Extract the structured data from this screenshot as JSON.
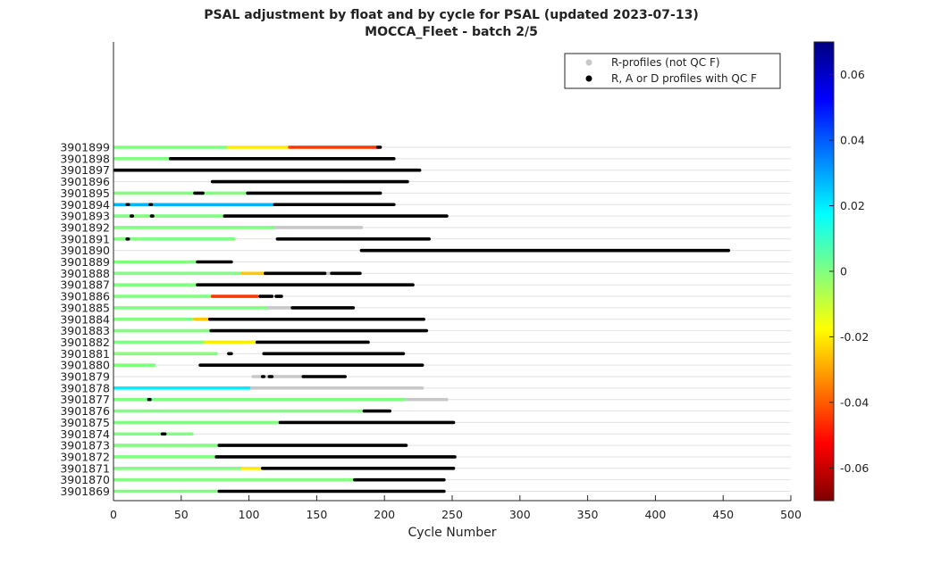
{
  "chart_data": {
    "type": "timeline",
    "title": "PSAL adjustment by float and by cycle for PSAL (updated 2023-07-13)",
    "subtitle": "MOCCA_Fleet - batch 2/5",
    "xlabel": "Cycle Number",
    "xlim": [
      0,
      500
    ],
    "xticks": [
      "0",
      "50",
      "100",
      "150",
      "200",
      "250",
      "300",
      "350",
      "400",
      "450",
      "500"
    ],
    "legend": {
      "placement": "top-right",
      "entries": [
        {
          "label": "R-profiles (not QC F)",
          "color": "#c8c8c8"
        },
        {
          "label": "R, A or D profiles with QC F",
          "color": "#000000"
        }
      ]
    },
    "colorbar": {
      "range": [
        -0.07,
        0.07
      ],
      "ticks": [
        "0.06",
        "0.04",
        "0.02",
        "0",
        "-0.02",
        "-0.04",
        "-0.06"
      ],
      "colormap": "jet"
    },
    "floats": [
      {
        "id": "3901899",
        "segments": [
          {
            "from": 1,
            "to": 85,
            "adj": 0.0
          },
          {
            "from": 85,
            "to": 130,
            "adj": -0.02
          },
          {
            "from": 130,
            "to": 195,
            "adj": -0.045
          },
          {
            "from": 195,
            "to": 197,
            "qcf": true
          }
        ]
      },
      {
        "id": "3901898",
        "segments": [
          {
            "from": 1,
            "to": 42,
            "adj": 0.0
          },
          {
            "from": 42,
            "to": 207,
            "qcf": true
          }
        ]
      },
      {
        "id": "3901897",
        "segments": [
          {
            "from": 1,
            "to": 226,
            "qcf": true
          }
        ]
      },
      {
        "id": "3901896",
        "segments": [
          {
            "from": 73,
            "to": 217,
            "qcf": true
          }
        ]
      },
      {
        "id": "3901895",
        "segments": [
          {
            "from": 1,
            "to": 60,
            "adj": 0.0
          },
          {
            "from": 60,
            "to": 66,
            "qcf": true
          },
          {
            "from": 66,
            "to": 99,
            "adj": 0.0
          },
          {
            "from": 99,
            "to": 197,
            "qcf": true
          }
        ]
      },
      {
        "id": "3901894",
        "segments": [
          {
            "from": 1,
            "to": 119,
            "adj": 0.028
          },
          {
            "from": 10,
            "to": 11,
            "qcf": true
          },
          {
            "from": 27,
            "to": 28,
            "qcf": true
          },
          {
            "from": 119,
            "to": 207,
            "qcf": true
          }
        ]
      },
      {
        "id": "3901893",
        "segments": [
          {
            "from": 1,
            "to": 82,
            "adj": 0.0
          },
          {
            "from": 13,
            "to": 14,
            "qcf": true
          },
          {
            "from": 28,
            "to": 29,
            "qcf": true
          },
          {
            "from": 82,
            "to": 246,
            "qcf": true
          }
        ]
      },
      {
        "id": "3901892",
        "segments": [
          {
            "from": 1,
            "to": 118,
            "adj": 0.0
          },
          {
            "from": 118,
            "to": 183,
            "r": true
          }
        ]
      },
      {
        "id": "3901891",
        "segments": [
          {
            "from": 1,
            "to": 89,
            "adj": 0.0
          },
          {
            "from": 10,
            "to": 11,
            "qcf": true
          },
          {
            "from": 121,
            "to": 233,
            "qcf": true
          }
        ]
      },
      {
        "id": "3901890",
        "segments": [
          {
            "from": 183,
            "to": 454,
            "qcf": true
          }
        ]
      },
      {
        "id": "3901889",
        "segments": [
          {
            "from": 1,
            "to": 62,
            "adj": 0.0
          },
          {
            "from": 62,
            "to": 87,
            "qcf": true
          }
        ]
      },
      {
        "id": "3901888",
        "segments": [
          {
            "from": 1,
            "to": 95,
            "adj": 0.0
          },
          {
            "from": 95,
            "to": 112,
            "adj": -0.025
          },
          {
            "from": 112,
            "to": 156,
            "qcf": true
          },
          {
            "from": 156,
            "to": 161,
            "r": true
          },
          {
            "from": 161,
            "to": 182,
            "qcf": true
          }
        ]
      },
      {
        "id": "3901887",
        "segments": [
          {
            "from": 1,
            "to": 62,
            "adj": 0.0
          },
          {
            "from": 62,
            "to": 221,
            "qcf": true
          }
        ]
      },
      {
        "id": "3901886",
        "segments": [
          {
            "from": 1,
            "to": 73,
            "adj": 0.0
          },
          {
            "from": 73,
            "to": 106,
            "adj": -0.045
          },
          {
            "from": 108,
            "to": 117,
            "qcf": true
          },
          {
            "from": 120,
            "to": 124,
            "qcf": true
          }
        ]
      },
      {
        "id": "3901885",
        "segments": [
          {
            "from": 1,
            "to": 113,
            "adj": 0.0
          },
          {
            "from": 113,
            "to": 132,
            "r": true
          },
          {
            "from": 132,
            "to": 177,
            "qcf": true
          }
        ]
      },
      {
        "id": "3901884",
        "segments": [
          {
            "from": 1,
            "to": 60,
            "adj": 0.0
          },
          {
            "from": 60,
            "to": 71,
            "adj": -0.025
          },
          {
            "from": 71,
            "to": 229,
            "qcf": true
          }
        ]
      },
      {
        "id": "3901883",
        "segments": [
          {
            "from": 1,
            "to": 72,
            "adj": 0.0
          },
          {
            "from": 72,
            "to": 231,
            "qcf": true
          }
        ]
      },
      {
        "id": "3901882",
        "segments": [
          {
            "from": 1,
            "to": 68,
            "adj": 0.0
          },
          {
            "from": 68,
            "to": 106,
            "adj": -0.02
          },
          {
            "from": 106,
            "to": 188,
            "qcf": true
          }
        ]
      },
      {
        "id": "3901881",
        "segments": [
          {
            "from": 1,
            "to": 76,
            "adj": 0.0
          },
          {
            "from": 85,
            "to": 87,
            "qcf": true
          },
          {
            "from": 111,
            "to": 214,
            "qcf": true
          }
        ]
      },
      {
        "id": "3901880",
        "segments": [
          {
            "from": 1,
            "to": 30,
            "adj": 0.0
          },
          {
            "from": 64,
            "to": 228,
            "qcf": true
          }
        ]
      },
      {
        "id": "3901879",
        "segments": [
          {
            "from": 103,
            "to": 140,
            "r": true
          },
          {
            "from": 110,
            "to": 111,
            "qcf": true
          },
          {
            "from": 115,
            "to": 117,
            "qcf": true
          },
          {
            "from": 140,
            "to": 171,
            "qcf": true
          }
        ]
      },
      {
        "id": "3901878",
        "segments": [
          {
            "from": 1,
            "to": 100,
            "adj": 0.02
          },
          {
            "from": 100,
            "to": 228,
            "r": true
          }
        ]
      },
      {
        "id": "3901877",
        "segments": [
          {
            "from": 1,
            "to": 215,
            "adj": 0.0
          },
          {
            "from": 26,
            "to": 27,
            "qcf": true
          },
          {
            "from": 215,
            "to": 246,
            "r": true
          }
        ]
      },
      {
        "id": "3901876",
        "segments": [
          {
            "from": 1,
            "to": 185,
            "adj": 0.0
          },
          {
            "from": 185,
            "to": 204,
            "qcf": true
          }
        ]
      },
      {
        "id": "3901875",
        "segments": [
          {
            "from": 1,
            "to": 123,
            "adj": 0.0
          },
          {
            "from": 123,
            "to": 251,
            "qcf": true
          }
        ]
      },
      {
        "id": "3901874",
        "segments": [
          {
            "from": 1,
            "to": 58,
            "adj": 0.0
          },
          {
            "from": 36,
            "to": 38,
            "qcf": true
          }
        ]
      },
      {
        "id": "3901873",
        "segments": [
          {
            "from": 1,
            "to": 78,
            "adj": 0.0
          },
          {
            "from": 78,
            "to": 216,
            "qcf": true
          }
        ]
      },
      {
        "id": "3901872",
        "segments": [
          {
            "from": 1,
            "to": 76,
            "adj": 0.0
          },
          {
            "from": 76,
            "to": 252,
            "qcf": true
          }
        ]
      },
      {
        "id": "3901871",
        "segments": [
          {
            "from": 1,
            "to": 95,
            "adj": 0.0
          },
          {
            "from": 95,
            "to": 110,
            "adj": -0.02
          },
          {
            "from": 110,
            "to": 251,
            "qcf": true
          }
        ]
      },
      {
        "id": "3901870",
        "segments": [
          {
            "from": 1,
            "to": 178,
            "adj": 0.0
          },
          {
            "from": 178,
            "to": 244,
            "qcf": true
          }
        ]
      },
      {
        "id": "3901869",
        "segments": [
          {
            "from": 1,
            "to": 78,
            "adj": 0.0
          },
          {
            "from": 78,
            "to": 244,
            "qcf": true
          }
        ]
      }
    ]
  }
}
